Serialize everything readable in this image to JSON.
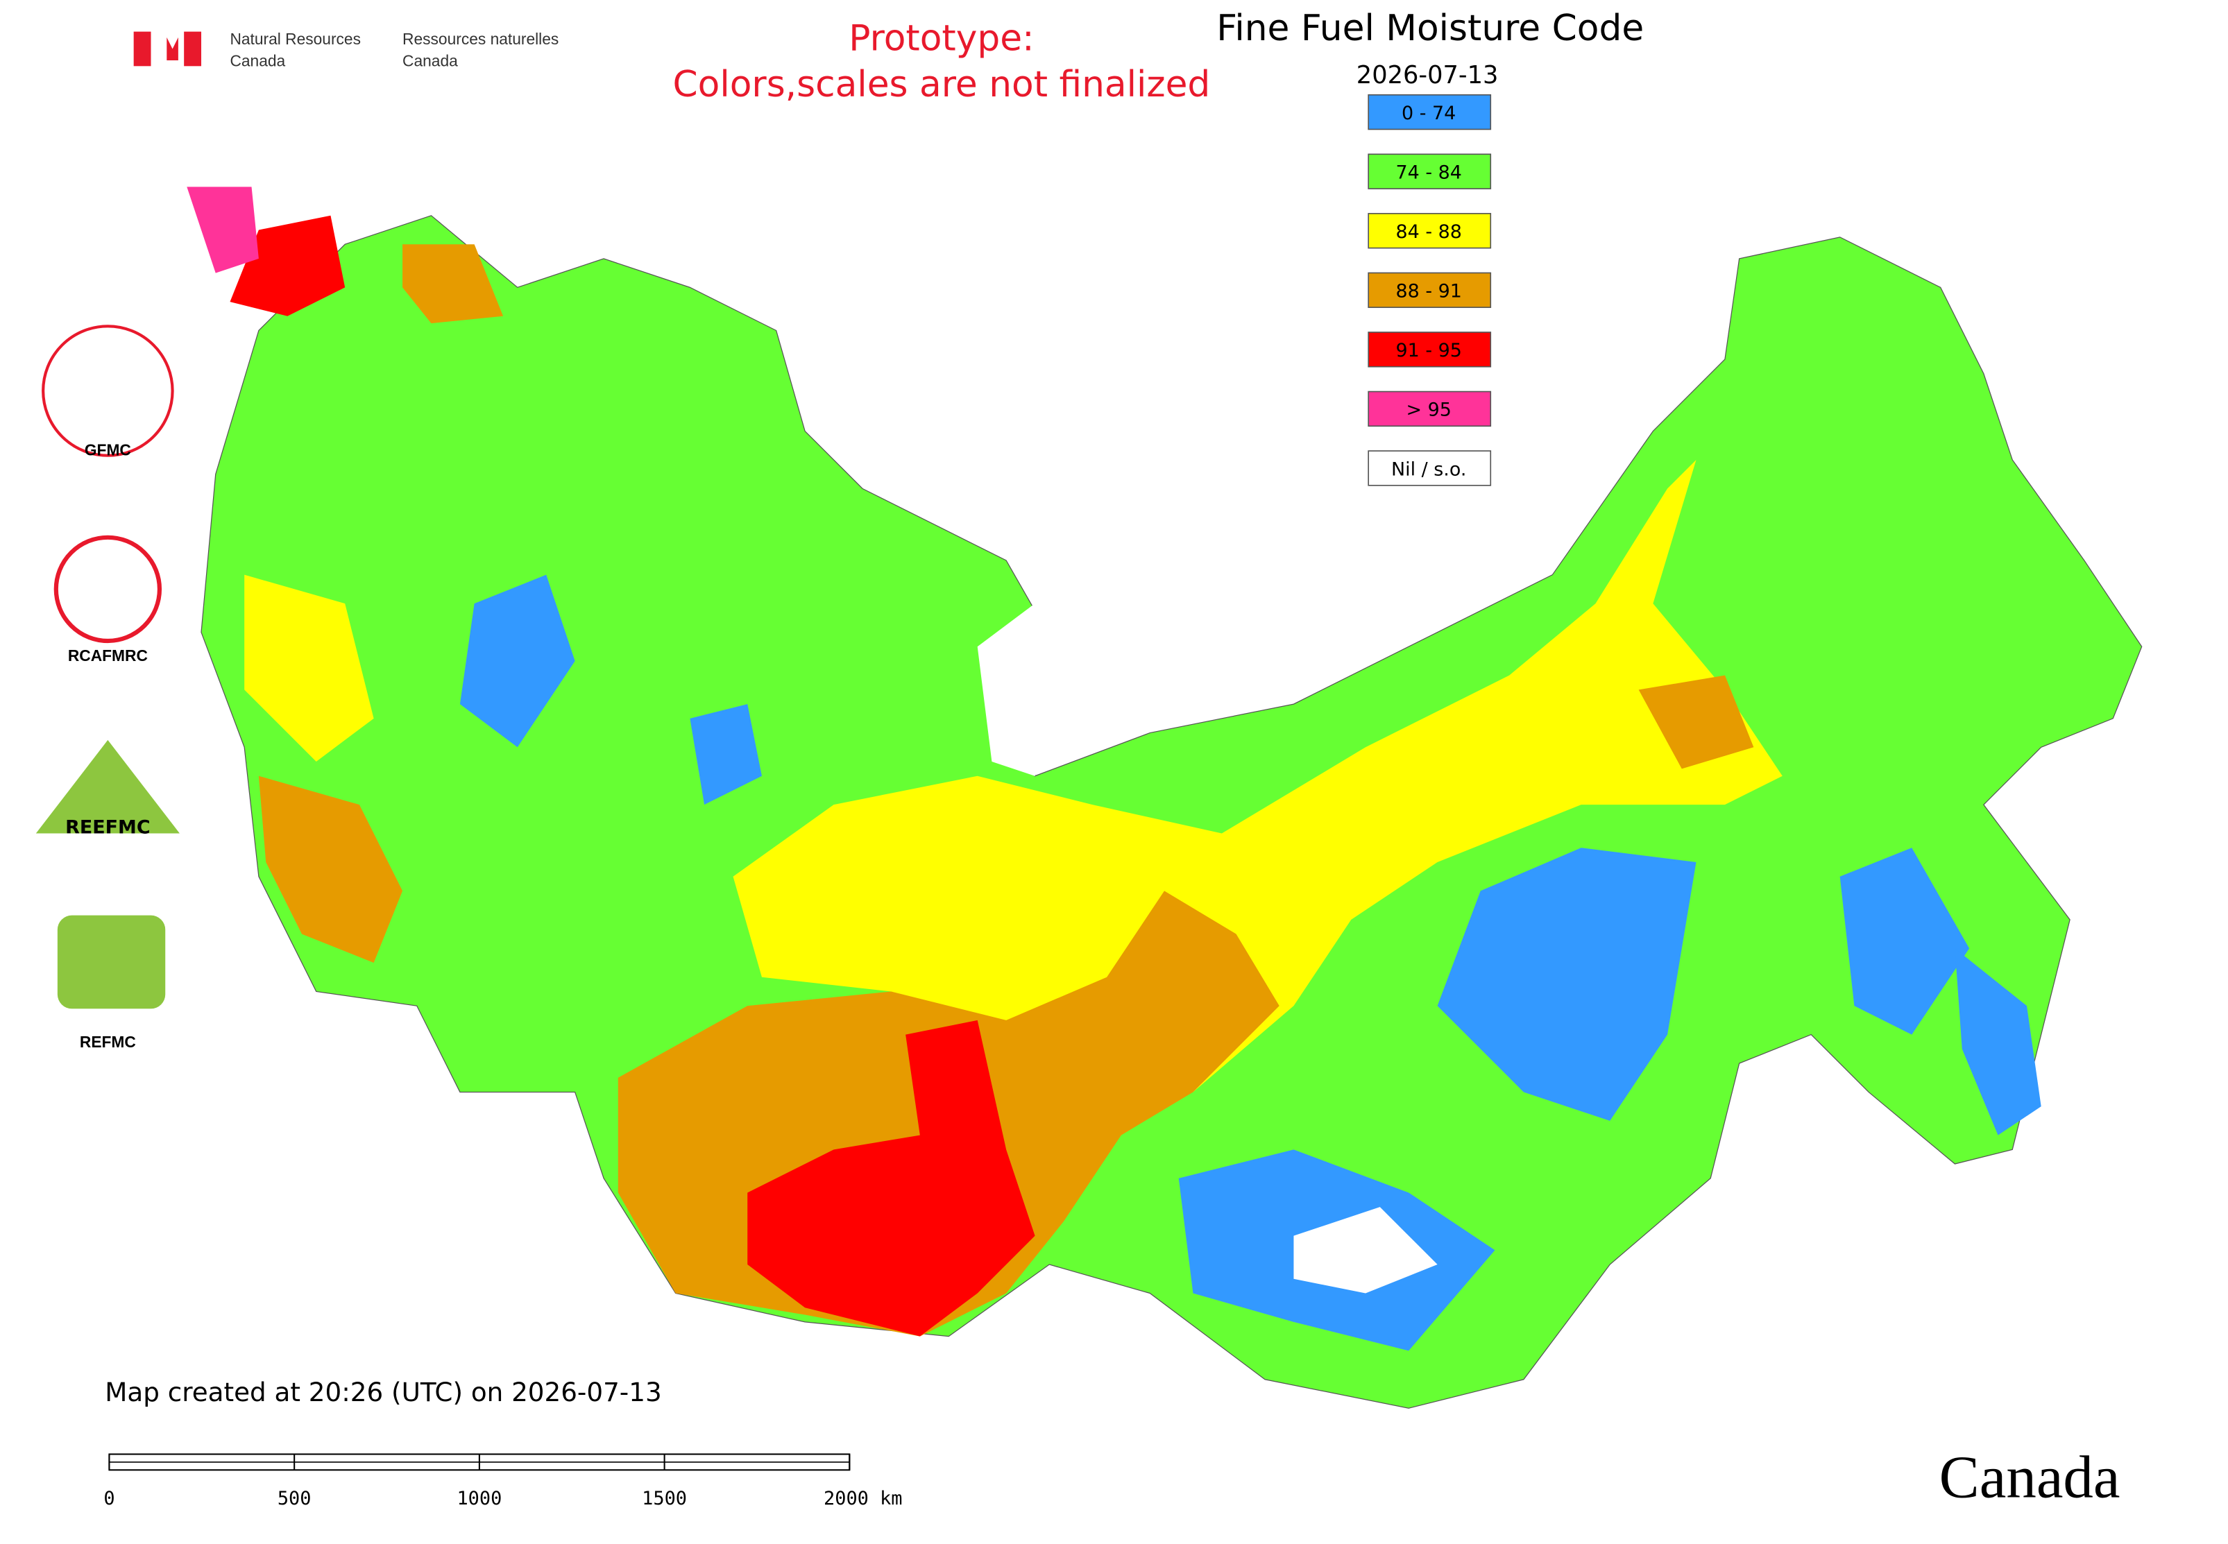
{
  "header": {
    "agency_en": [
      "Natural Resources",
      "Canada"
    ],
    "agency_fr": [
      "Ressources naturelles",
      "Canada"
    ],
    "notice": [
      "Prototype:",
      "Colors,scales are not finalized"
    ]
  },
  "map": {
    "title": "Fine Fuel Moisture Code",
    "date": "2026-07-13",
    "legend": [
      {
        "label": "0 - 74",
        "color": "#3399ff"
      },
      {
        "label": "74 - 84",
        "color": "#66ff33"
      },
      {
        "label": "84 - 88",
        "color": "#ffff00"
      },
      {
        "label": "88 - 91",
        "color": "#e69b00"
      },
      {
        "label": "91 - 95",
        "color": "#ff0000"
      },
      {
        "label": "> 95",
        "color": "#ff3399"
      },
      {
        "label": "Nil / s.o.",
        "color": "#ffffff"
      }
    ],
    "created": "Map created at 20:26 (UTC) on 2026-07-13",
    "scale_bar": [
      "0",
      "500",
      "1000",
      "1500",
      "2000 km"
    ]
  },
  "centres": {
    "labels": [
      "GFMC",
      "RCAFMRC",
      "REFMC"
    ],
    "reefmc_logo": "REEFMC"
  },
  "footer": {
    "wordmark": "Canada"
  }
}
